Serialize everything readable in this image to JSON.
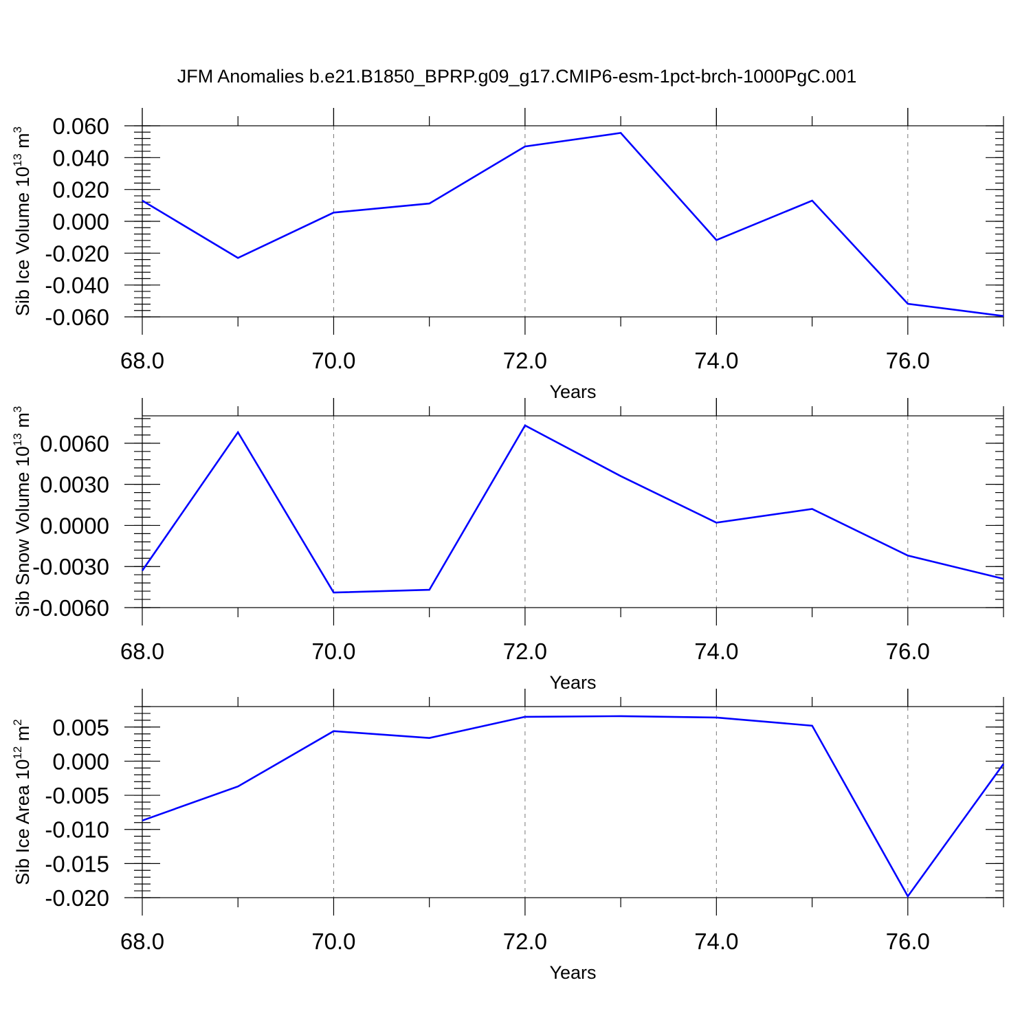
{
  "title": "JFM Anomalies b.e21.B1850_BPRP.g09_g17.CMIP6-esm-1pct-brch-1000PgC.001",
  "colors": {
    "line": "#0000ff",
    "axis": "#000000",
    "grid": "#777777"
  },
  "chart_data": [
    {
      "type": "line",
      "title": "JFM Anomalies b.e21.B1850_BPRP.g09_g17.CMIP6-esm-1pct-brch-1000PgC.001",
      "xlabel": "Years",
      "ylabel": "Sib Ice Volume 10",
      "ylabel_sup": "13",
      "ylabel_unit": " m",
      "ylabel_unit_sup": "3",
      "xlim": [
        68,
        77
      ],
      "ylim": [
        -0.06,
        0.06
      ],
      "x_ticks": [
        68,
        70,
        72,
        74,
        76
      ],
      "x_tick_labels": [
        "68.0",
        "70.0",
        "72.0",
        "74.0",
        "76.0"
      ],
      "y_ticks": [
        0.06,
        0.04,
        0.02,
        0.0,
        -0.02,
        -0.04,
        -0.06
      ],
      "y_tick_labels": [
        "0.060",
        "0.040",
        "0.020",
        "0.000",
        "-0.020",
        "-0.040",
        "-0.060"
      ],
      "grid": "vertical dashed at major x ticks",
      "series": [
        {
          "x": [
            68,
            69,
            70,
            71,
            72,
            73,
            74,
            75,
            76,
            77
          ],
          "values": [
            0.013,
            -0.023,
            0.0055,
            0.0112,
            0.047,
            0.0555,
            -0.0118,
            0.013,
            -0.0518,
            -0.0595
          ]
        }
      ]
    },
    {
      "type": "line",
      "xlabel": "Years",
      "ylabel": "Sib Snow Volume 10",
      "ylabel_sup": "13",
      "ylabel_unit": " m",
      "ylabel_unit_sup": "3",
      "xlim": [
        68,
        77
      ],
      "ylim": [
        -0.006,
        0.008
      ],
      "x_ticks": [
        68,
        70,
        72,
        74,
        76
      ],
      "x_tick_labels": [
        "68.0",
        "70.0",
        "72.0",
        "74.0",
        "76.0"
      ],
      "y_ticks": [
        0.006,
        0.003,
        0.0,
        -0.003,
        -0.006
      ],
      "y_tick_labels": [
        "0.0060",
        "0.0030",
        "0.0000",
        "-0.0030",
        "-0.0060"
      ],
      "grid": "vertical dashed at major x ticks",
      "series": [
        {
          "x": [
            68,
            69,
            70,
            71,
            72,
            73,
            74,
            75,
            76,
            77
          ],
          "values": [
            -0.0033,
            0.0068,
            -0.0049,
            -0.0047,
            0.0073,
            0.0036,
            0.0002,
            0.0012,
            -0.0022,
            -0.0039
          ]
        }
      ]
    },
    {
      "type": "line",
      "xlabel": "Years",
      "ylabel": "Sib Ice Area 10",
      "ylabel_sup": "12",
      "ylabel_unit": " m",
      "ylabel_unit_sup": "2",
      "xlim": [
        68,
        77
      ],
      "ylim": [
        -0.02,
        0.008
      ],
      "x_ticks": [
        68,
        70,
        72,
        74,
        76
      ],
      "x_tick_labels": [
        "68.0",
        "70.0",
        "72.0",
        "74.0",
        "76.0"
      ],
      "y_ticks": [
        0.005,
        0.0,
        -0.005,
        -0.01,
        -0.015,
        -0.02
      ],
      "y_tick_labels": [
        "0.005",
        "0.000",
        "-0.005",
        "-0.010",
        "-0.015",
        "-0.020"
      ],
      "grid": "vertical dashed at major x ticks",
      "series": [
        {
          "x": [
            68,
            69,
            70,
            71,
            72,
            73,
            74,
            75,
            76,
            77
          ],
          "values": [
            -0.0087,
            -0.0037,
            0.0044,
            0.0034,
            0.0065,
            0.0066,
            0.0064,
            0.0052,
            -0.0198,
            -0.0004
          ]
        }
      ]
    }
  ]
}
